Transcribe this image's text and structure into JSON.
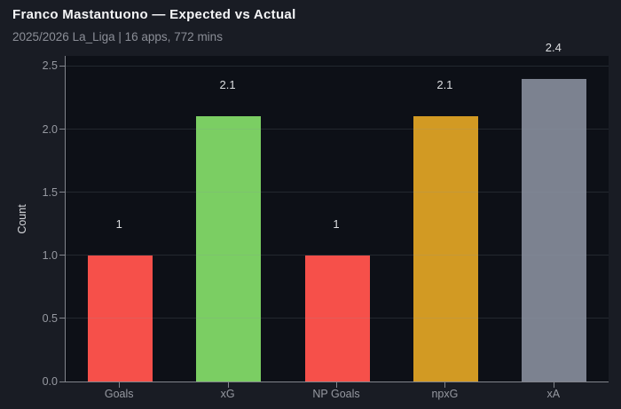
{
  "header": {
    "title": "Franco Mastantuono — Expected vs Actual",
    "subtitle": "2025/2026 La_Liga | 16 apps, 772 mins"
  },
  "chart_data": {
    "type": "bar",
    "title": "Franco Mastantuono — Expected vs Actual",
    "subtitle": "2025/2026 La_Liga | 16 apps, 772 mins",
    "categories": [
      "Goals",
      "xG",
      "NP Goals",
      "npxG",
      "xA"
    ],
    "values": [
      1,
      2.1,
      1,
      2.1,
      2.4
    ],
    "value_labels": [
      "1",
      "2.1",
      "1",
      "2.1",
      "2.4"
    ],
    "bar_colors": [
      "#f6504a",
      "#7bce63",
      "#f6504a",
      "#d29a23",
      "#7c8290"
    ],
    "xlabel": "",
    "ylabel": "Count",
    "ylim": [
      0,
      2.58
    ],
    "yticks": [
      0.0,
      0.5,
      1.0,
      1.5,
      2.0,
      2.5
    ],
    "ytick_labels": [
      "0.0",
      "0.5",
      "1.0",
      "1.5",
      "2.0",
      "2.5"
    ],
    "grid": "horizontal",
    "legend": "none"
  },
  "colors": {
    "page_bg": "#191c24",
    "plot_bg": "#0d1017",
    "title_text": "#f4f5f7",
    "subtitle_text": "#8b8e97",
    "tick_label_text": "#9699a1",
    "axis_spine": "#82858c",
    "gridline": "rgba(140,147,158,0.18)",
    "value_label_text": "#dcdee1",
    "bar_red": "#f6504a",
    "bar_green": "#7bce63",
    "bar_orange": "#d29a23",
    "bar_gray": "#7c8290"
  }
}
